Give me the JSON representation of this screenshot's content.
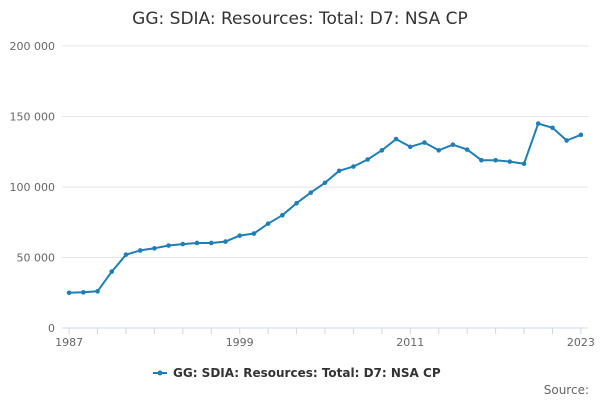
{
  "chart_data": {
    "type": "line",
    "title": "GG: SDIA: Resources: Total: D7: NSA CP",
    "xlabel": "",
    "ylabel": "",
    "x": [
      1987,
      1988,
      1989,
      1990,
      1991,
      1992,
      1993,
      1994,
      1995,
      1996,
      1997,
      1998,
      1999,
      2000,
      2001,
      2002,
      2003,
      2004,
      2005,
      2006,
      2007,
      2008,
      2009,
      2010,
      2011,
      2012,
      2013,
      2014,
      2015,
      2016,
      2017,
      2018,
      2019,
      2020,
      2021,
      2022,
      2023
    ],
    "series": [
      {
        "name": "GG: SDIA: Resources: Total: D7: NSA CP",
        "color": "#1f7fb5",
        "values": [
          25000,
          25300,
          26000,
          40000,
          52000,
          55000,
          56500,
          58500,
          59500,
          60300,
          60300,
          61300,
          65500,
          67000,
          74000,
          80000,
          88500,
          96000,
          103000,
          111500,
          114500,
          119500,
          126000,
          134000,
          128500,
          131500,
          126000,
          130000,
          126500,
          119000,
          119000,
          118000,
          116500,
          145000,
          142000,
          133000,
          137000
        ]
      }
    ],
    "ylim": [
      0,
      200000
    ],
    "xlim": [
      1986.5,
      2023.5
    ],
    "y_ticks": [
      0,
      50000,
      100000,
      150000,
      200000
    ],
    "y_tick_labels": [
      "0",
      "50 000",
      "100 000",
      "150 000",
      "200 000"
    ],
    "x_tick_labels": [
      "1987",
      "1999",
      "2011",
      "2023"
    ],
    "x_tick_values": [
      1987,
      1999,
      2011,
      2023
    ],
    "legend": "bottom-center",
    "grid": true,
    "source_label": "Source:"
  }
}
